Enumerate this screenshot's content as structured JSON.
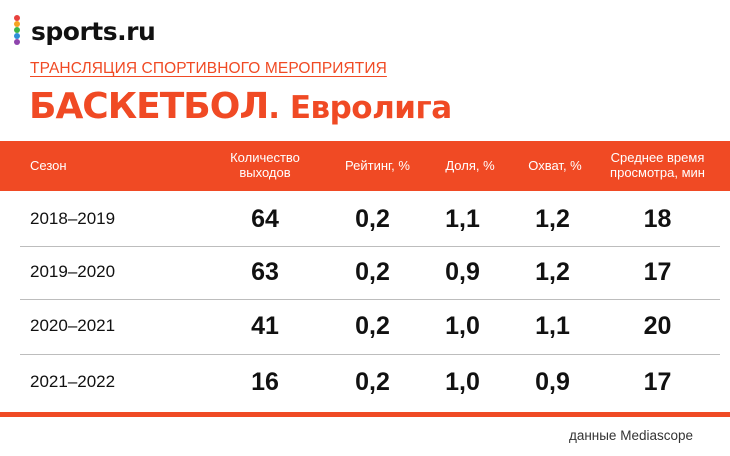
{
  "brand": {
    "name": "sports.ru",
    "dot_colors": [
      "#e8413d",
      "#f6a323",
      "#3cb54a",
      "#2f8fd8",
      "#8e44ad"
    ]
  },
  "kicker": "ТРАНСЛЯЦИЯ СПОРТИВНОГО МЕРОПРИЯТИЯ",
  "title": {
    "main": "БАСКЕТБОЛ",
    "dot": ".",
    "sub": " Евролига"
  },
  "table": {
    "headers": [
      "Сезон",
      "Количество выходов",
      "Рейтинг, %",
      "Доля, %",
      "Охват, %",
      "Среднее время просмотра, мин"
    ],
    "rows": [
      [
        "2018–2019",
        "64",
        "0,2",
        "1,1",
        "1,2",
        "18"
      ],
      [
        "2019–2020",
        "63",
        "0,2",
        "0,9",
        "1,2",
        "17"
      ],
      [
        "2020–2021",
        "41",
        "0,2",
        "1,0",
        "1,1",
        "20"
      ],
      [
        "2021–2022",
        "16",
        "0,2",
        "1,0",
        "0,9",
        "17"
      ]
    ]
  },
  "source": "данные Mediascope",
  "colors": {
    "accent": "#f04a24"
  }
}
